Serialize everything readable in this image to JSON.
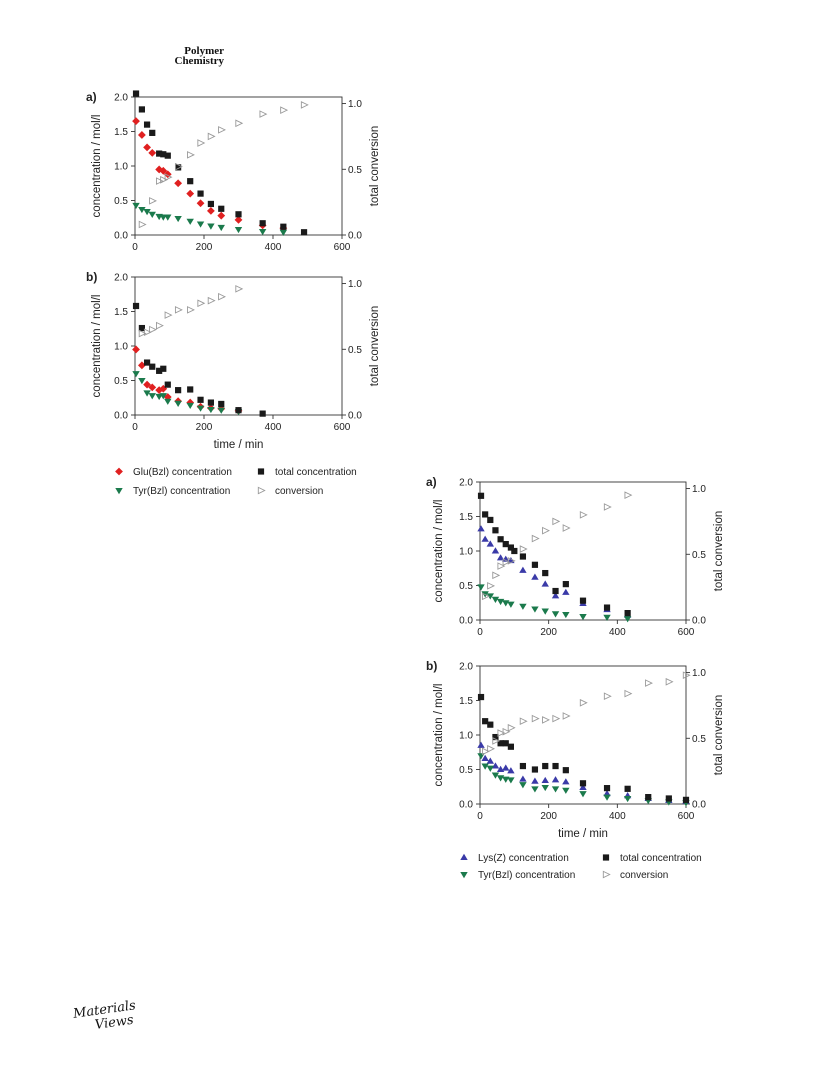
{
  "header": {
    "journal_line1": "Polymer",
    "journal_line2": "Chemistry"
  },
  "footer": {
    "publisher_line1": "Materials",
    "publisher_line2": "Views"
  },
  "colors": {
    "glu": "#e02020",
    "lys": "#3a3aa8",
    "tyr": "#1b7a4c",
    "total": "#1a1a1a",
    "conversion": "#9a9a9a",
    "axis": "#333333"
  },
  "chart_data": [
    {
      "figure": 1,
      "type": "scatter",
      "panels": [
        {
          "label": "a)",
          "xlim": [
            0,
            600
          ],
          "ylim": [
            0,
            2.0
          ],
          "y2lim": [
            0,
            1.05
          ],
          "xticks": [
            0,
            200,
            400,
            600
          ],
          "yticks": [
            0.0,
            0.5,
            1.0,
            1.5,
            2.0
          ],
          "y2ticks": [
            0.0,
            0.5,
            1.0
          ],
          "ylabel": "concentration / mol/l",
          "y2label": "total conversion",
          "series": [
            {
              "name": "Glu(Bzl) concentration",
              "marker": "diamond",
              "color": "#e02020",
              "x": [
                3,
                20,
                35,
                50,
                70,
                82,
                95,
                125,
                160,
                190,
                220,
                250,
                300,
                370,
                430
              ],
              "y": [
                1.65,
                1.45,
                1.27,
                1.19,
                0.95,
                0.93,
                0.88,
                0.75,
                0.6,
                0.46,
                0.35,
                0.28,
                0.22,
                0.14,
                0.1
              ]
            },
            {
              "name": "Tyr(Bzl) concentration",
              "marker": "triangle-down",
              "color": "#1b7a4c",
              "x": [
                3,
                20,
                35,
                50,
                70,
                82,
                95,
                125,
                160,
                190,
                220,
                250,
                300,
                370,
                430
              ],
              "y": [
                0.43,
                0.37,
                0.34,
                0.3,
                0.27,
                0.26,
                0.26,
                0.24,
                0.2,
                0.16,
                0.13,
                0.11,
                0.08,
                0.05,
                0.04
              ]
            },
            {
              "name": "total concentration",
              "marker": "square",
              "color": "#1a1a1a",
              "x": [
                3,
                20,
                35,
                50,
                70,
                82,
                95,
                125,
                160,
                190,
                220,
                250,
                300,
                370,
                430,
                490
              ],
              "y": [
                2.05,
                1.82,
                1.6,
                1.48,
                1.18,
                1.17,
                1.15,
                0.98,
                0.78,
                0.6,
                0.45,
                0.38,
                0.3,
                0.17,
                0.12,
                0.04
              ]
            },
            {
              "name": "conversion",
              "marker": "triangle-right",
              "color": "#9a9a9a",
              "axis": "right",
              "x": [
                20,
                50,
                70,
                82,
                95,
                125,
                160,
                190,
                220,
                250,
                300,
                370,
                430,
                490
              ],
              "y": [
                0.08,
                0.26,
                0.41,
                0.42,
                0.44,
                0.52,
                0.61,
                0.7,
                0.75,
                0.8,
                0.85,
                0.92,
                0.95,
                0.99
              ]
            }
          ]
        },
        {
          "label": "b)",
          "xlim": [
            0,
            600
          ],
          "ylim": [
            0,
            2.0
          ],
          "y2lim": [
            0,
            1.05
          ],
          "xticks": [
            0,
            200,
            400,
            600
          ],
          "yticks": [
            0.0,
            0.5,
            1.0,
            1.5,
            2.0
          ],
          "y2ticks": [
            0.0,
            0.5,
            1.0
          ],
          "xlabel": "time / min",
          "ylabel": "concentration / mol/l",
          "y2label": "total conversion",
          "series": [
            {
              "name": "Glu(Bzl) concentration",
              "marker": "diamond",
              "color": "#e02020",
              "x": [
                3,
                20,
                35,
                50,
                70,
                82,
                95,
                125,
                160,
                190,
                220,
                250,
                300
              ],
              "y": [
                0.95,
                0.72,
                0.44,
                0.4,
                0.36,
                0.38,
                0.26,
                0.2,
                0.18,
                0.12,
                0.1,
                0.09,
                0.06
              ]
            },
            {
              "name": "Tyr(Bzl) concentration",
              "marker": "triangle-down",
              "color": "#1b7a4c",
              "x": [
                3,
                20,
                35,
                50,
                70,
                82,
                95,
                125,
                160,
                190,
                220,
                250,
                300
              ],
              "y": [
                0.6,
                0.5,
                0.32,
                0.28,
                0.27,
                0.28,
                0.2,
                0.17,
                0.14,
                0.1,
                0.08,
                0.07,
                0.05
              ]
            },
            {
              "name": "total concentration",
              "marker": "square",
              "color": "#1a1a1a",
              "x": [
                3,
                20,
                35,
                50,
                70,
                82,
                95,
                125,
                160,
                190,
                220,
                250,
                300,
                370
              ],
              "y": [
                1.58,
                1.26,
                0.76,
                0.7,
                0.64,
                0.67,
                0.44,
                0.36,
                0.37,
                0.22,
                0.18,
                0.16,
                0.07,
                0.02
              ]
            },
            {
              "name": "conversion",
              "marker": "triangle-right",
              "color": "#9a9a9a",
              "axis": "right",
              "x": [
                20,
                35,
                50,
                70,
                95,
                125,
                160,
                190,
                220,
                250,
                300
              ],
              "y": [
                0.62,
                0.63,
                0.65,
                0.68,
                0.76,
                0.8,
                0.8,
                0.85,
                0.87,
                0.9,
                0.96
              ]
            }
          ]
        }
      ],
      "legend": [
        {
          "label": "Glu(Bzl) concentration",
          "marker": "diamond",
          "color": "#e02020"
        },
        {
          "label": "total concentration",
          "marker": "square",
          "color": "#1a1a1a"
        },
        {
          "label": "Tyr(Bzl) concentration",
          "marker": "triangle-down",
          "color": "#1b7a4c"
        },
        {
          "label": "conversion",
          "marker": "triangle-right",
          "color": "#9a9a9a"
        }
      ]
    },
    {
      "figure": 2,
      "type": "scatter",
      "panels": [
        {
          "label": "a)",
          "xlim": [
            0,
            600
          ],
          "ylim": [
            0,
            2.0
          ],
          "y2lim": [
            0,
            1.05
          ],
          "xticks": [
            0,
            200,
            400,
            600
          ],
          "yticks": [
            0.0,
            0.5,
            1.0,
            1.5,
            2.0
          ],
          "y2ticks": [
            0.0,
            0.5,
            1.0
          ],
          "ylabel": "concentration / mol/l",
          "y2label": "total conversion",
          "series": [
            {
              "name": "Lys(Z) concentration",
              "marker": "triangle-up",
              "color": "#3a3aa8",
              "x": [
                3,
                15,
                30,
                45,
                60,
                75,
                90,
                125,
                160,
                190,
                220,
                250,
                300,
                370,
                430
              ],
              "y": [
                1.32,
                1.17,
                1.1,
                1.0,
                0.9,
                0.88,
                0.86,
                0.72,
                0.62,
                0.52,
                0.35,
                0.4,
                0.24,
                0.15,
                0.07
              ]
            },
            {
              "name": "Tyr(Bzl) concentration",
              "marker": "triangle-down",
              "color": "#1b7a4c",
              "x": [
                3,
                15,
                30,
                45,
                60,
                75,
                90,
                125,
                160,
                190,
                220,
                250,
                300,
                370,
                430
              ],
              "y": [
                0.48,
                0.38,
                0.35,
                0.3,
                0.27,
                0.25,
                0.23,
                0.2,
                0.16,
                0.13,
                0.09,
                0.08,
                0.05,
                0.04,
                0.02
              ]
            },
            {
              "name": "total concentration",
              "marker": "square",
              "color": "#1a1a1a",
              "x": [
                3,
                15,
                30,
                45,
                60,
                75,
                90,
                100,
                125,
                160,
                190,
                220,
                250,
                300,
                370,
                430
              ],
              "y": [
                1.8,
                1.53,
                1.45,
                1.3,
                1.17,
                1.1,
                1.05,
                1.0,
                0.92,
                0.8,
                0.68,
                0.42,
                0.52,
                0.28,
                0.18,
                0.1
              ]
            },
            {
              "name": "conversion",
              "marker": "triangle-right",
              "color": "#9a9a9a",
              "axis": "right",
              "x": [
                15,
                30,
                45,
                60,
                75,
                90,
                125,
                160,
                190,
                220,
                250,
                300,
                370,
                430
              ],
              "y": [
                0.18,
                0.26,
                0.34,
                0.41,
                0.44,
                0.45,
                0.54,
                0.62,
                0.68,
                0.75,
                0.7,
                0.8,
                0.86,
                0.95
              ]
            }
          ]
        },
        {
          "label": "b)",
          "xlim": [
            0,
            600
          ],
          "ylim": [
            0,
            2.0
          ],
          "y2lim": [
            0,
            1.05
          ],
          "xticks": [
            0,
            200,
            400,
            600
          ],
          "yticks": [
            0.0,
            0.5,
            1.0,
            1.5,
            2.0
          ],
          "y2ticks": [
            0.0,
            0.5,
            1.0
          ],
          "xlabel": "time / min",
          "ylabel": "concentration / mol/l",
          "y2label": "total conversion",
          "series": [
            {
              "name": "Lys(Z) concentration",
              "marker": "triangle-up",
              "color": "#3a3aa8",
              "x": [
                3,
                15,
                30,
                45,
                60,
                75,
                90,
                125,
                160,
                190,
                220,
                250,
                300,
                370,
                430,
                490,
                550,
                600
              ],
              "y": [
                0.85,
                0.66,
                0.62,
                0.55,
                0.5,
                0.52,
                0.48,
                0.36,
                0.33,
                0.34,
                0.35,
                0.32,
                0.24,
                0.15,
                0.12,
                0.08,
                0.05,
                0.04
              ]
            },
            {
              "name": "Tyr(Bzl) concentration",
              "marker": "triangle-down",
              "color": "#1b7a4c",
              "x": [
                3,
                15,
                30,
                45,
                60,
                75,
                90,
                125,
                160,
                190,
                220,
                250,
                300,
                370,
                430,
                490,
                550,
                600
              ],
              "y": [
                0.7,
                0.55,
                0.52,
                0.42,
                0.38,
                0.36,
                0.35,
                0.28,
                0.22,
                0.24,
                0.22,
                0.2,
                0.15,
                0.1,
                0.08,
                0.05,
                0.03,
                0.02
              ]
            },
            {
              "name": "total concentration",
              "marker": "square",
              "color": "#1a1a1a",
              "x": [
                3,
                15,
                30,
                45,
                60,
                75,
                90,
                125,
                160,
                190,
                220,
                250,
                300,
                370,
                430,
                490,
                550,
                600
              ],
              "y": [
                1.55,
                1.2,
                1.15,
                0.97,
                0.88,
                0.88,
                0.83,
                0.55,
                0.5,
                0.55,
                0.55,
                0.49,
                0.3,
                0.23,
                0.22,
                0.1,
                0.08,
                0.06
              ]
            },
            {
              "name": "conversion",
              "marker": "triangle-right",
              "color": "#9a9a9a",
              "axis": "right",
              "x": [
                15,
                30,
                45,
                60,
                75,
                90,
                125,
                160,
                190,
                220,
                250,
                300,
                370,
                430,
                490,
                550,
                600
              ],
              "y": [
                0.4,
                0.42,
                0.48,
                0.54,
                0.55,
                0.58,
                0.63,
                0.65,
                0.64,
                0.65,
                0.67,
                0.77,
                0.82,
                0.84,
                0.92,
                0.93,
                0.98
              ]
            }
          ]
        }
      ],
      "legend": [
        {
          "label": "Lys(Z) concentration",
          "marker": "triangle-up",
          "color": "#3a3aa8"
        },
        {
          "label": "total concentration",
          "marker": "square",
          "color": "#1a1a1a"
        },
        {
          "label": "Tyr(Bzl) concentration",
          "marker": "triangle-down",
          "color": "#1b7a4c"
        },
        {
          "label": "conversion",
          "marker": "triangle-right",
          "color": "#9a9a9a"
        }
      ]
    }
  ]
}
